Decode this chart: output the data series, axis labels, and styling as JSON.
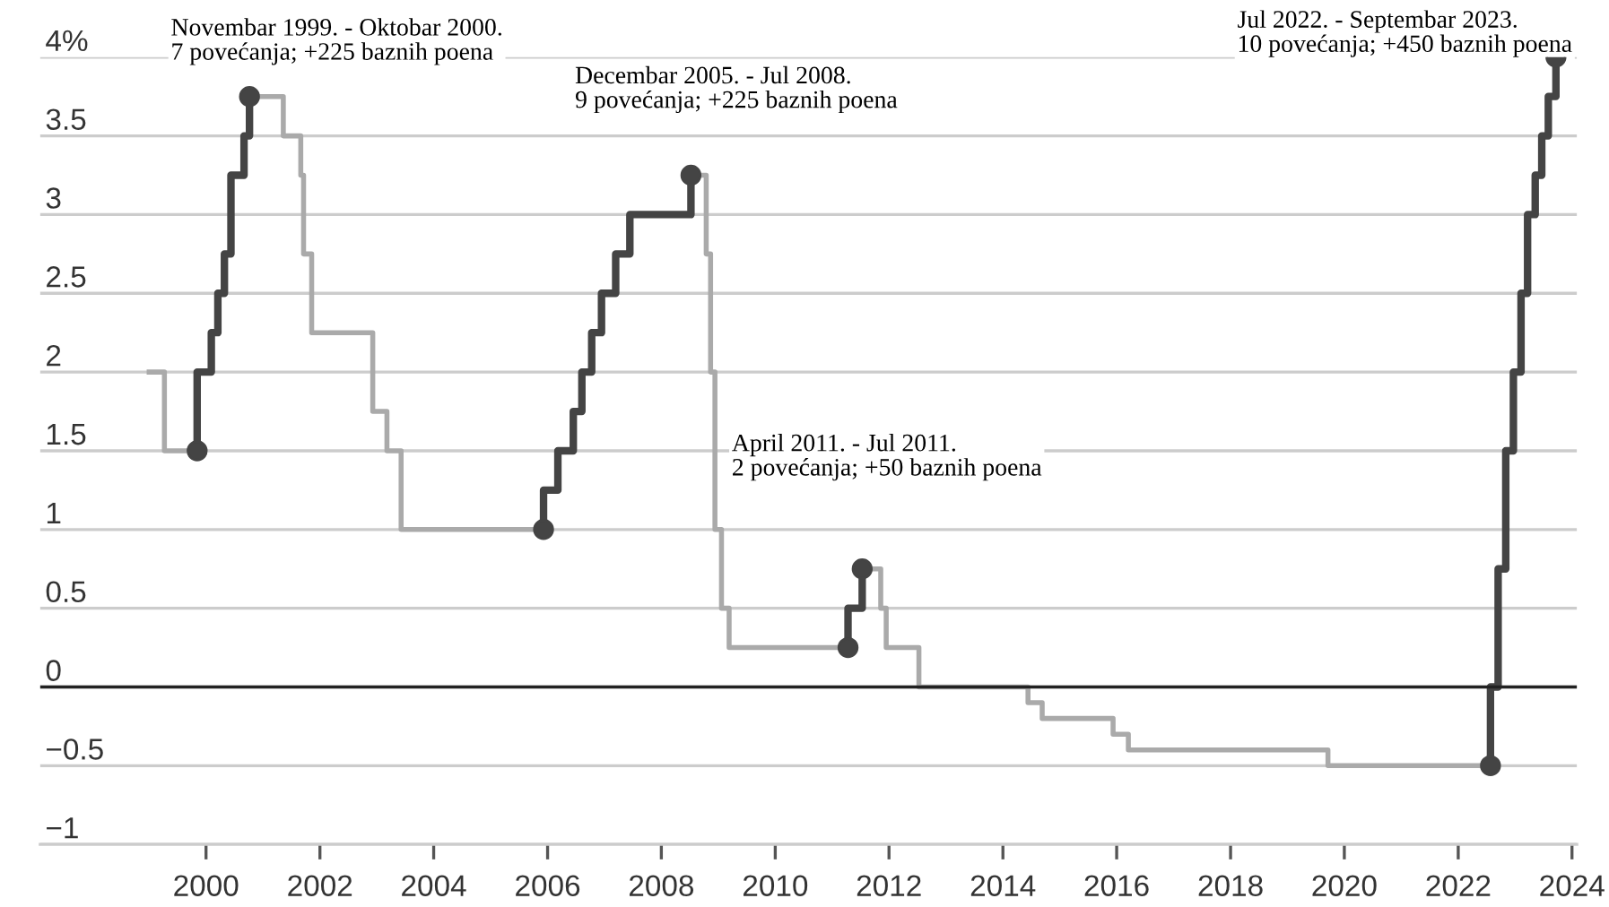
{
  "chart_data": {
    "type": "step",
    "xlim": [
      "1997-02-01",
      "2024-02-01"
    ],
    "ylim": [
      -1,
      4
    ],
    "xticks": [
      "2000",
      "2002",
      "2004",
      "2006",
      "2008",
      "2010",
      "2012",
      "2014",
      "2016",
      "2018",
      "2020",
      "2022",
      "2024"
    ],
    "yticks": [
      -1,
      -0.5,
      0,
      0.5,
      1,
      1.5,
      2,
      2.5,
      3,
      3.5,
      {
        "value": 4,
        "label": "4%"
      }
    ],
    "grid": "y",
    "marker": "none",
    "line_style": "solid",
    "series": [
      {
        "color": "#aaaaaa",
        "x": [
          "1999-01-01",
          "1999-04-09",
          "1999-11-05",
          "2000-02-04",
          "2000-03-17",
          "2000-04-28",
          "2000-06-09",
          "2000-09-01",
          "2000-10-06",
          "2001-05-11",
          "2001-08-31",
          "2001-09-18",
          "2001-11-09",
          "2002-12-06",
          "2003-03-07",
          "2003-06-06",
          "2005-12-06",
          "2006-03-08",
          "2006-06-15",
          "2006-08-09",
          "2006-10-11",
          "2006-12-13",
          "2007-03-14",
          "2007-06-13",
          "2008-07-09",
          "2008-10-15",
          "2008-11-12",
          "2008-12-10",
          "2009-01-21",
          "2009-03-11",
          "2009-04-08",
          "2011-04-13",
          "2011-07-13",
          "2011-11-09",
          "2011-12-14",
          "2012-07-11",
          "2014-06-11",
          "2014-09-10",
          "2015-12-09",
          "2016-03-16",
          "2019-09-18",
          "2022-07-27"
        ],
        "values": [
          2.0,
          1.5,
          2.0,
          2.25,
          2.5,
          2.75,
          3.25,
          3.5,
          3.75,
          3.5,
          3.25,
          2.75,
          2.25,
          1.75,
          1.5,
          1.0,
          1.25,
          1.5,
          1.75,
          2.0,
          2.25,
          2.5,
          2.75,
          3.0,
          3.25,
          2.75,
          2.0,
          1.0,
          0.5,
          0.25,
          0.25,
          0.5,
          0.75,
          0.5,
          0.25,
          0.0,
          -0.1,
          -0.2,
          -0.3,
          -0.4,
          -0.5,
          -0.5
        ]
      },
      {
        "color": "#444444",
        "x": [
          "1999-11-05",
          "1999-11-05",
          "2000-02-04",
          "2000-03-17",
          "2000-04-28",
          "2000-06-09",
          "2000-09-01",
          "2000-10-06",
          "2000-10-07",
          "2005-12-06",
          "2005-12-06",
          "2006-03-08",
          "2006-06-15",
          "2006-08-09",
          "2006-10-11",
          "2006-12-13",
          "2007-03-14",
          "2007-06-13",
          "2008-07-09",
          "2008-07-10",
          "2011-04-13",
          "2011-04-13",
          "2011-07-13",
          "2011-07-14",
          "2022-07-27",
          "2022-07-27",
          "2022-09-14",
          "2022-11-02",
          "2022-12-21",
          "2023-02-08",
          "2023-03-22",
          "2023-05-10",
          "2023-06-21",
          "2023-08-02",
          "2023-09-20"
        ],
        "values": [
          1.5,
          2.0,
          2.25,
          2.5,
          2.75,
          3.25,
          3.5,
          3.75,
          null,
          1.0,
          1.25,
          1.5,
          1.75,
          2.0,
          2.25,
          2.5,
          2.75,
          3.0,
          3.25,
          null,
          0.25,
          0.5,
          0.75,
          null,
          -0.5,
          0.0,
          0.75,
          1.5,
          2.0,
          2.5,
          3.0,
          3.25,
          3.5,
          3.75,
          4.0
        ]
      },
      {
        "type": "scatter",
        "marker": "circle",
        "color": "#444444",
        "x": [
          "1999-11-05",
          "2000-10-06",
          "2005-12-06",
          "2008-07-09",
          "2011-04-13",
          "2011-07-13",
          "2022-07-27",
          "2023-09-20"
        ],
        "values": [
          1.5,
          3.75,
          1.0,
          3.25,
          0.25,
          0.75,
          -0.5,
          4.0
        ]
      }
    ],
    "ref_lines": [
      {
        "axis": "y",
        "value": 0,
        "color": "#222222"
      }
    ],
    "annotations": [
      "Novembar 1999. - Oktobar 2000.\n7 povećanja; +225 baznih poena",
      "Decembar 2005. - Jul 2008.\n9 povećanja; +225 baznih poena",
      "April 2011. - Jul 2011.\n2 povećanja; +50 baznih poena",
      "Jul 2022. - Septembar 2023.\n10 povećanja; +450 baznih poena"
    ]
  }
}
